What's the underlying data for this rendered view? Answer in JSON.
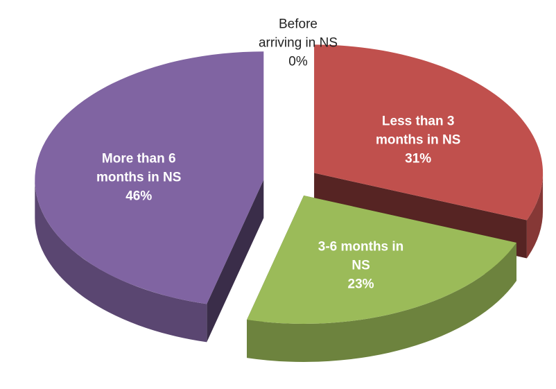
{
  "chart_data": {
    "type": "pie3d",
    "categories": [
      "Before arriving in NS",
      "Less than 3 months in NS",
      "3-6 months in NS",
      "More than 6 months in NS"
    ],
    "values": [
      0,
      31,
      23,
      46
    ],
    "value_labels": [
      "0%",
      "31%",
      "23%",
      "46%"
    ],
    "colors": [
      "#4f81bd",
      "#c0504d",
      "#9bbb59",
      "#8064a2"
    ]
  }
}
